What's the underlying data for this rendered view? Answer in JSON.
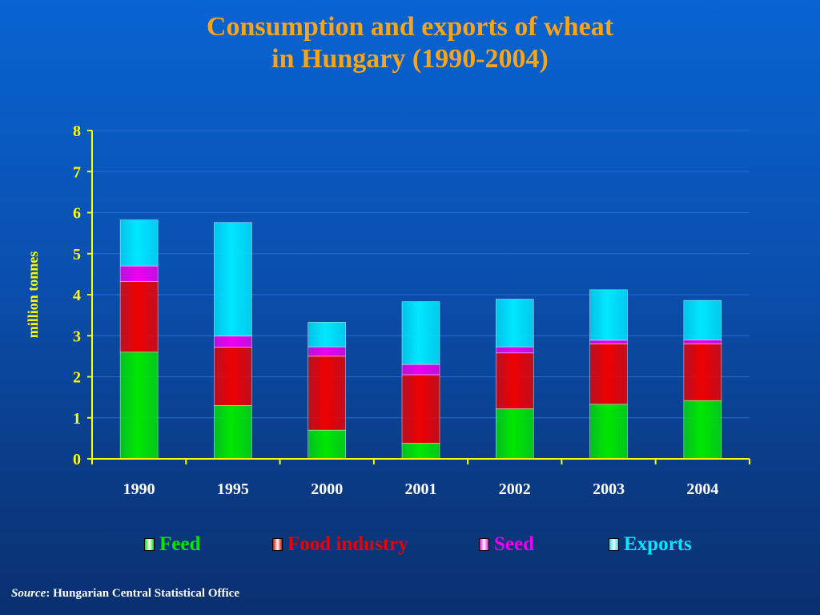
{
  "title_lines": [
    "Consumption and exports of wheat",
    "in Hungary (1990-2004)"
  ],
  "source_label": "Source",
  "source_text": ": Hungarian Central Statistical Office",
  "chart_data": {
    "type": "bar",
    "stacked": true,
    "categories": [
      "1990",
      "1995",
      "2000",
      "2001",
      "2002",
      "2003",
      "2004"
    ],
    "series": [
      {
        "name": "Feed",
        "color": "#00e800",
        "values": [
          2.6,
          1.3,
          0.7,
          0.38,
          1.22,
          1.33,
          1.42
        ]
      },
      {
        "name": "Food industry",
        "color": "#ee0000",
        "values": [
          1.72,
          1.42,
          1.8,
          1.67,
          1.36,
          1.47,
          1.38
        ]
      },
      {
        "name": "Seed",
        "color": "#ee00ee",
        "values": [
          0.38,
          0.27,
          0.23,
          0.25,
          0.15,
          0.09,
          0.1
        ]
      },
      {
        "name": "Exports",
        "color": "#00e8ff",
        "values": [
          1.12,
          2.77,
          0.6,
          1.53,
          1.16,
          1.23,
          0.96
        ]
      }
    ],
    "ylabel": "million tonnes",
    "xlabel": "",
    "ylim": [
      0,
      8
    ],
    "yticks": [
      0,
      1,
      2,
      3,
      4,
      5,
      6,
      7,
      8
    ],
    "grid": true,
    "legend_position": "bottom",
    "axis_color": "#ffff00",
    "tick_label_color": "#ffff00",
    "ylabel_color": "#ffff00",
    "legend_text_colors": [
      "#00e800",
      "#ee0000",
      "#ee00ee",
      "#00e8ff"
    ]
  }
}
